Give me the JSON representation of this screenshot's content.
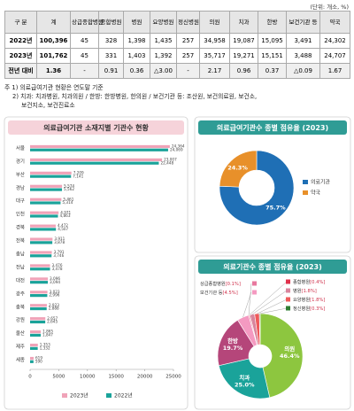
{
  "unit": "(단위: 개소, %)",
  "table": {
    "header": [
      "구 분",
      "계",
      "상급종합병원",
      "종합병원",
      "병원",
      "요양병원",
      "정신병원",
      "의원",
      "치과",
      "한방",
      "보건기관 등",
      "약국"
    ],
    "rows": [
      [
        "2022년",
        "100,396",
        "45",
        "328",
        "1,398",
        "1,435",
        "257",
        "34,958",
        "19,087",
        "15,095",
        "3,491",
        "24,302"
      ],
      [
        "2023년",
        "101,762",
        "45",
        "331",
        "1,403",
        "1,392",
        "257",
        "35,717",
        "19,271",
        "15,151",
        "3,488",
        "24,707"
      ],
      [
        "전년 대비",
        "1.36",
        "-",
        "0.91",
        "0.36",
        "△3.00",
        "-",
        "2.17",
        "0.96",
        "0.37",
        "△0.09",
        "1.67"
      ]
    ]
  },
  "notes": [
    "주 1) 의료급여기관 현황은 연도말 기준",
    "2) 치과: 치과병원, 치과의원 / 한방: 한방병원, 한의원 / 보건기관 등: 조산원, 보건의료원, 보건소,",
    "보건지소, 보건진료소"
  ],
  "chart_data": [
    {
      "type": "bar",
      "title": "의료급여기관 소재지별 기관수 현황",
      "categories": [
        "서울",
        "경기",
        "부산",
        "경남",
        "대구",
        "인천",
        "경북",
        "전북",
        "충남",
        "전남",
        "대전",
        "광주",
        "충북",
        "강원",
        "울산",
        "제주",
        "세종"
      ],
      "series": [
        {
          "name": "2023년",
          "color": "#f0a3b8",
          "values": [
            24364,
            23007,
            7209,
            5574,
            5461,
            4971,
            4472,
            3911,
            3791,
            3476,
            3096,
            3023,
            2923,
            2657,
            1865,
            1353,
            619
          ],
          "value_labels": [
            "24,364",
            "23,007",
            "7,209",
            "5,574",
            "5,461",
            "4,971",
            "4,472",
            "3,911",
            "3,791",
            "3,476",
            "3,096",
            "3,023",
            "2,923",
            "2,657",
            "1,865",
            "1,353",
            "619"
          ]
        },
        {
          "name": "2022년",
          "color": "#1aa39a",
          "values": [
            24069,
            22448,
            7141,
            5562,
            5314,
            4863,
            4507,
            3878,
            3746,
            3478,
            3094,
            2996,
            2888,
            2645,
            1847,
            1332,
            590
          ],
          "value_labels": [
            "24,069",
            "22,448",
            "7,141",
            "5,562",
            "5,314",
            "4,863",
            "4,507",
            "3,878",
            "3,746",
            "3,478",
            "3,094",
            "2,996",
            "2,888",
            "2,645",
            "1,847",
            "1,332",
            "590"
          ]
        }
      ],
      "xlim": [
        0,
        25000
      ],
      "xticks": [
        0,
        5000,
        10000,
        15000,
        20000,
        25000
      ]
    },
    {
      "type": "pie",
      "title": "의료급여기관수 종별 점유율 (2023)",
      "categories": [
        "의료기관",
        "약국"
      ],
      "values": [
        75.7,
        24.3
      ],
      "value_labels": [
        "75.7%",
        "24.3%"
      ],
      "colors": [
        "#1f6fb5",
        "#e8902a"
      ]
    },
    {
      "type": "pie",
      "title": "의료기관수 종별 점유율 (2023)",
      "categories": [
        "의원",
        "치과",
        "한방",
        "보건기관 등",
        "상급종합병원",
        "종합병원",
        "병원",
        "요양병원",
        "정신병원"
      ],
      "values": [
        46.4,
        25.0,
        19.7,
        4.5,
        0.1,
        0.4,
        1.8,
        1.8,
        0.3
      ],
      "value_labels": [
        "46.4%",
        "25.0%",
        "19.7%",
        "[4.5%]",
        "[0.1%]",
        "[0.4%]",
        "[1.8%]",
        "[1.8%]",
        "[0.3%]"
      ],
      "colors": [
        "#8dc63f",
        "#1aa39a",
        "#b5467a",
        "#f49ac1",
        "#e8789e",
        "#e0314b",
        "#d9849c",
        "#ef5a5a",
        "#2e7d32"
      ]
    }
  ]
}
